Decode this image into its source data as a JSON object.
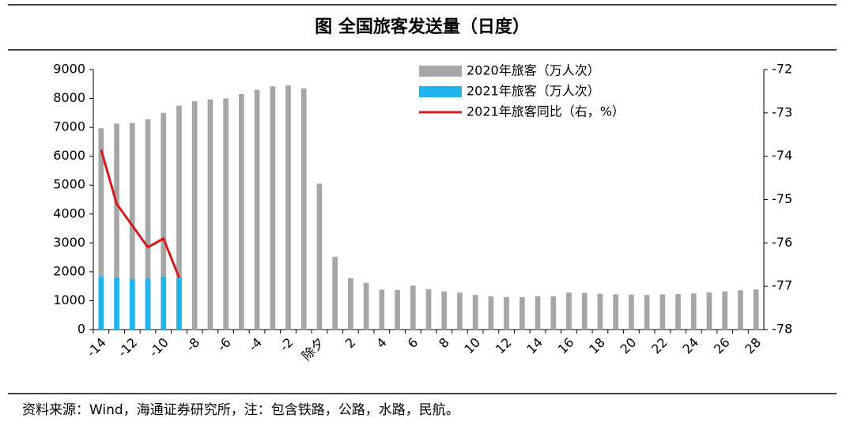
{
  "chart_data": {
    "type": "bar",
    "title": "图  全国旅客发送量（日度）",
    "source": "资料来源：Wind，海通证券研究所，注：包含铁路，公路，水路，民航。",
    "categories": [
      "-14",
      null,
      "-12",
      null,
      "-10",
      null,
      "-8",
      null,
      "-6",
      null,
      "-4",
      null,
      "-2",
      null,
      "除夕",
      null,
      "2",
      null,
      "4",
      null,
      "6",
      null,
      "8",
      null,
      "10",
      null,
      "12",
      null,
      "14",
      null,
      "16",
      null,
      "18",
      null,
      "20",
      null,
      "22",
      null,
      "24",
      null,
      "26",
      null,
      "28"
    ],
    "series": [
      {
        "name": "2020年旅客（万人次）",
        "color": "#a6a6a6",
        "type": "bar",
        "values": [
          6970,
          7130,
          7150,
          7280,
          7500,
          7750,
          7900,
          7970,
          8000,
          8150,
          8300,
          8420,
          8450,
          8350,
          5050,
          2520,
          1780,
          1620,
          1380,
          1370,
          1520,
          1400,
          1320,
          1280,
          1200,
          1150,
          1130,
          1120,
          1150,
          1150,
          1280,
          1270,
          1240,
          1220,
          1210,
          1200,
          1220,
          1230,
          1250,
          1290,
          1320,
          1360,
          1390
        ]
      },
      {
        "name": "2021年旅客（万人次）",
        "color": "#1fb4ec",
        "type": "bar",
        "values": [
          1830,
          1790,
          1750,
          1760,
          1820,
          1800,
          null,
          null,
          null,
          null,
          null,
          null,
          null,
          null,
          null,
          null,
          null,
          null,
          null,
          null,
          null,
          null,
          null,
          null,
          null,
          null,
          null,
          null,
          null,
          null,
          null,
          null,
          null,
          null,
          null,
          null,
          null,
          null,
          null,
          null,
          null,
          null,
          null
        ]
      },
      {
        "name": "2021年旅客同比（右，%）",
        "color": "#d7191c",
        "type": "line",
        "axis": "y2",
        "values": [
          -73.85,
          -75.1,
          -75.6,
          -76.1,
          -75.9,
          -76.8,
          null,
          null,
          null,
          null,
          null,
          null,
          null,
          null,
          null,
          null,
          null,
          null,
          null,
          null,
          null,
          null,
          null,
          null,
          null,
          null,
          null,
          null,
          null,
          null,
          null,
          null,
          null,
          null,
          null,
          null,
          null,
          null,
          null,
          null,
          null,
          null,
          null
        ]
      }
    ],
    "ylim": [
      0,
      9000
    ],
    "yticks": [
      0,
      1000,
      2000,
      3000,
      4000,
      5000,
      6000,
      7000,
      8000,
      9000
    ],
    "y2lim": [
      -78,
      -72
    ],
    "y2ticks": [
      -78,
      -77,
      -76,
      -75,
      -74,
      -73,
      -72
    ],
    "legend": "upper right"
  }
}
